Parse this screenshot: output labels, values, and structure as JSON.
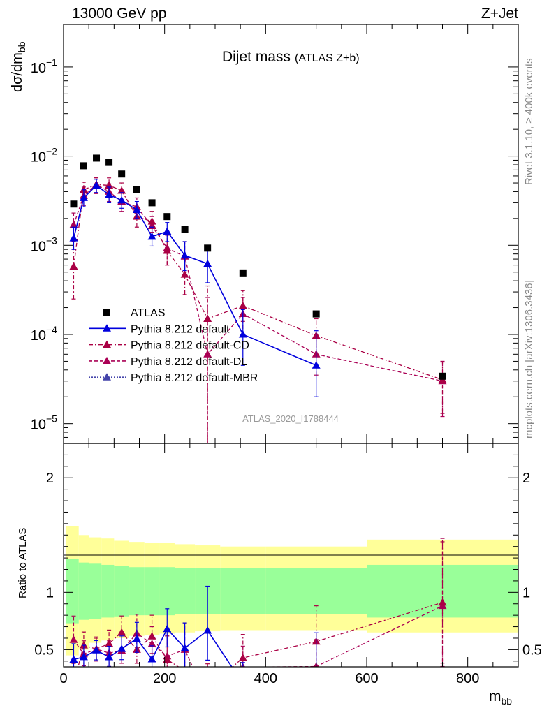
{
  "header": {
    "left": "13000 GeV pp",
    "right": "Z+Jet"
  },
  "chart_data": {
    "type": "scatter",
    "title": "Dijet mass",
    "subtitle": "(ATLAS Z+b)",
    "ylabel_main": "dσ/dm_bb",
    "ylabel_ratio": "Ratio to ATLAS",
    "xlabel": "m_bb",
    "xlim": [
      0,
      900
    ],
    "ylim_main": [
      6e-06,
      0.3
    ],
    "ylim_ratio": [
      0.35,
      2.3
    ],
    "yscale_main": "log",
    "x_tick_labels": [
      "0",
      "200",
      "400",
      "600",
      "800"
    ],
    "main_tick_labels": [
      {
        "m": "10",
        "e": "−5",
        "v": 1e-05
      },
      {
        "m": "10",
        "e": "−4",
        "v": 0.0001
      },
      {
        "m": "10",
        "e": "−3",
        "v": 0.001
      },
      {
        "m": "10",
        "e": "−2",
        "v": 0.01
      },
      {
        "m": "10",
        "e": "−1",
        "v": 0.1
      }
    ],
    "ratio_tick_labels": [
      {
        "t": "0.5",
        "v": 0.5
      },
      {
        "t": "1",
        "v": 1
      },
      {
        "t": "2",
        "v": 2
      }
    ],
    "analysis_label": "ATLAS_2020_I1788444",
    "side_label_top": "Rivet 3.1.10, ≥ 400k events",
    "side_label_bottom": "mcplots.cern.ch [arXiv:1306.3436]",
    "data_series": {
      "name": "ATLAS",
      "color": "#000000",
      "x": [
        20,
        40,
        65,
        90,
        115,
        145,
        175,
        205,
        240,
        285,
        355,
        500,
        750
      ],
      "y": [
        0.0029,
        0.0078,
        0.0095,
        0.0085,
        0.0063,
        0.0042,
        0.003,
        0.0021,
        0.0015,
        0.00093,
        0.00049,
        0.00017,
        3.4e-05
      ]
    },
    "band_bins": [
      {
        "x0": 5,
        "x1": 30,
        "green": [
          0.73,
          1.29
        ],
        "yellow": [
          0.45,
          1.58
        ]
      },
      {
        "x0": 30,
        "x1": 50,
        "green": [
          0.76,
          1.26
        ],
        "yellow": [
          0.5,
          1.5
        ]
      },
      {
        "x0": 50,
        "x1": 75,
        "green": [
          0.77,
          1.25
        ],
        "yellow": [
          0.56,
          1.48
        ]
      },
      {
        "x0": 75,
        "x1": 100,
        "green": [
          0.78,
          1.24
        ],
        "yellow": [
          0.58,
          1.47
        ]
      },
      {
        "x0": 100,
        "x1": 130,
        "green": [
          0.79,
          1.23
        ],
        "yellow": [
          0.6,
          1.45
        ]
      },
      {
        "x0": 130,
        "x1": 160,
        "green": [
          0.8,
          1.22
        ],
        "yellow": [
          0.62,
          1.44
        ]
      },
      {
        "x0": 160,
        "x1": 190,
        "green": [
          0.8,
          1.22
        ],
        "yellow": [
          0.63,
          1.43
        ]
      },
      {
        "x0": 190,
        "x1": 220,
        "green": [
          0.8,
          1.22
        ],
        "yellow": [
          0.64,
          1.43
        ]
      },
      {
        "x0": 220,
        "x1": 260,
        "green": [
          0.81,
          1.21
        ],
        "yellow": [
          0.65,
          1.42
        ]
      },
      {
        "x0": 260,
        "x1": 310,
        "green": [
          0.81,
          1.21
        ],
        "yellow": [
          0.66,
          1.41
        ]
      },
      {
        "x0": 310,
        "x1": 400,
        "green": [
          0.81,
          1.21
        ],
        "yellow": [
          0.67,
          1.4
        ]
      },
      {
        "x0": 400,
        "x1": 600,
        "green": [
          0.81,
          1.21
        ],
        "yellow": [
          0.67,
          1.4
        ]
      },
      {
        "x0": 600,
        "x1": 900,
        "green": [
          0.78,
          1.24
        ],
        "yellow": [
          0.65,
          1.46
        ]
      }
    ],
    "mc_series": [
      {
        "name": "Pythia 8.212 default",
        "color": "#0000dd",
        "line": "solid",
        "x": [
          20,
          40,
          65,
          90,
          115,
          145,
          175,
          205,
          240,
          285,
          355,
          500
        ],
        "y": [
          0.0012,
          0.0034,
          0.0047,
          0.0037,
          0.0032,
          0.0025,
          0.00125,
          0.00143,
          0.00077,
          0.00062,
          0.0001,
          4.5e-05
        ],
        "err": [
          [
            0.0009,
            0.0016
          ],
          [
            0.0027,
            0.0042
          ],
          [
            0.0039,
            0.0055
          ],
          [
            0.003,
            0.0045
          ],
          [
            0.0026,
            0.0039
          ],
          [
            0.002,
            0.0031
          ],
          [
            0.00098,
            0.0016
          ],
          [
            0.0011,
            0.0018
          ],
          [
            0.00052,
            0.0011
          ],
          [
            0.00038,
            0.00098
          ],
          [
            4.5e-05,
            0.00019
          ],
          [
            2e-05,
            0.00011
          ]
        ]
      },
      {
        "name": "Pythia 8.212 default-CD",
        "color": "#aa0044",
        "line": "dashdot",
        "x": [
          20,
          40,
          65,
          90,
          115,
          145,
          175,
          205,
          240,
          285,
          355,
          500,
          750
        ],
        "y": [
          0.00058,
          0.0042,
          0.0048,
          0.0047,
          0.0041,
          0.0021,
          0.00185,
          0.00087,
          0.00047,
          0.00015,
          0.00021,
          9.7e-05,
          3.1e-05
        ],
        "err": [
          [
            0.00025,
            0.0011
          ],
          [
            0.0033,
            0.0051
          ],
          [
            0.0039,
            0.0057
          ],
          [
            0.0038,
            0.0057
          ],
          [
            0.0032,
            0.005
          ],
          [
            0.0016,
            0.0027
          ],
          [
            0.0014,
            0.0024
          ],
          [
            0.0006,
            0.0013
          ],
          [
            0.00028,
            0.00075
          ],
          [
            4e-06,
            0.00035
          ],
          [
            0.00014,
            0.00031
          ],
          [
            6e-05,
            0.00015
          ],
          [
            1.3e-05,
            4.9e-05
          ]
        ]
      },
      {
        "name": "Pythia 8.212 default-DL",
        "color": "#aa0055",
        "line": "dashed",
        "x": [
          20,
          40,
          65,
          90,
          115,
          145,
          175,
          205,
          240,
          285,
          355,
          500,
          750
        ],
        "y": [
          0.0017,
          0.0036,
          0.0048,
          0.004,
          0.0031,
          0.0027,
          0.00165,
          0.00093,
          0.00075,
          6e-05,
          0.00017,
          6e-05,
          3e-05
        ],
        "err": [
          [
            0.0012,
            0.0023
          ],
          [
            0.0028,
            0.0045
          ],
          [
            0.0038,
            0.0058
          ],
          [
            0.0031,
            0.0049
          ],
          [
            0.0024,
            0.0039
          ],
          [
            0.0021,
            0.0034
          ],
          [
            0.0012,
            0.0021
          ],
          [
            0.0006,
            0.0013
          ],
          [
            0.0005,
            0.0011
          ],
          [
            3e-06,
            0.00026
          ],
          [
            0.0001,
            0.00026
          ],
          [
            3.5e-05,
            0.0001
          ],
          [
            1.2e-05,
            5e-05
          ]
        ]
      }
    ],
    "mbr_legend": {
      "name": "Pythia 8.212 default-MBR",
      "color": "#4444aa",
      "line": "dotted"
    }
  }
}
